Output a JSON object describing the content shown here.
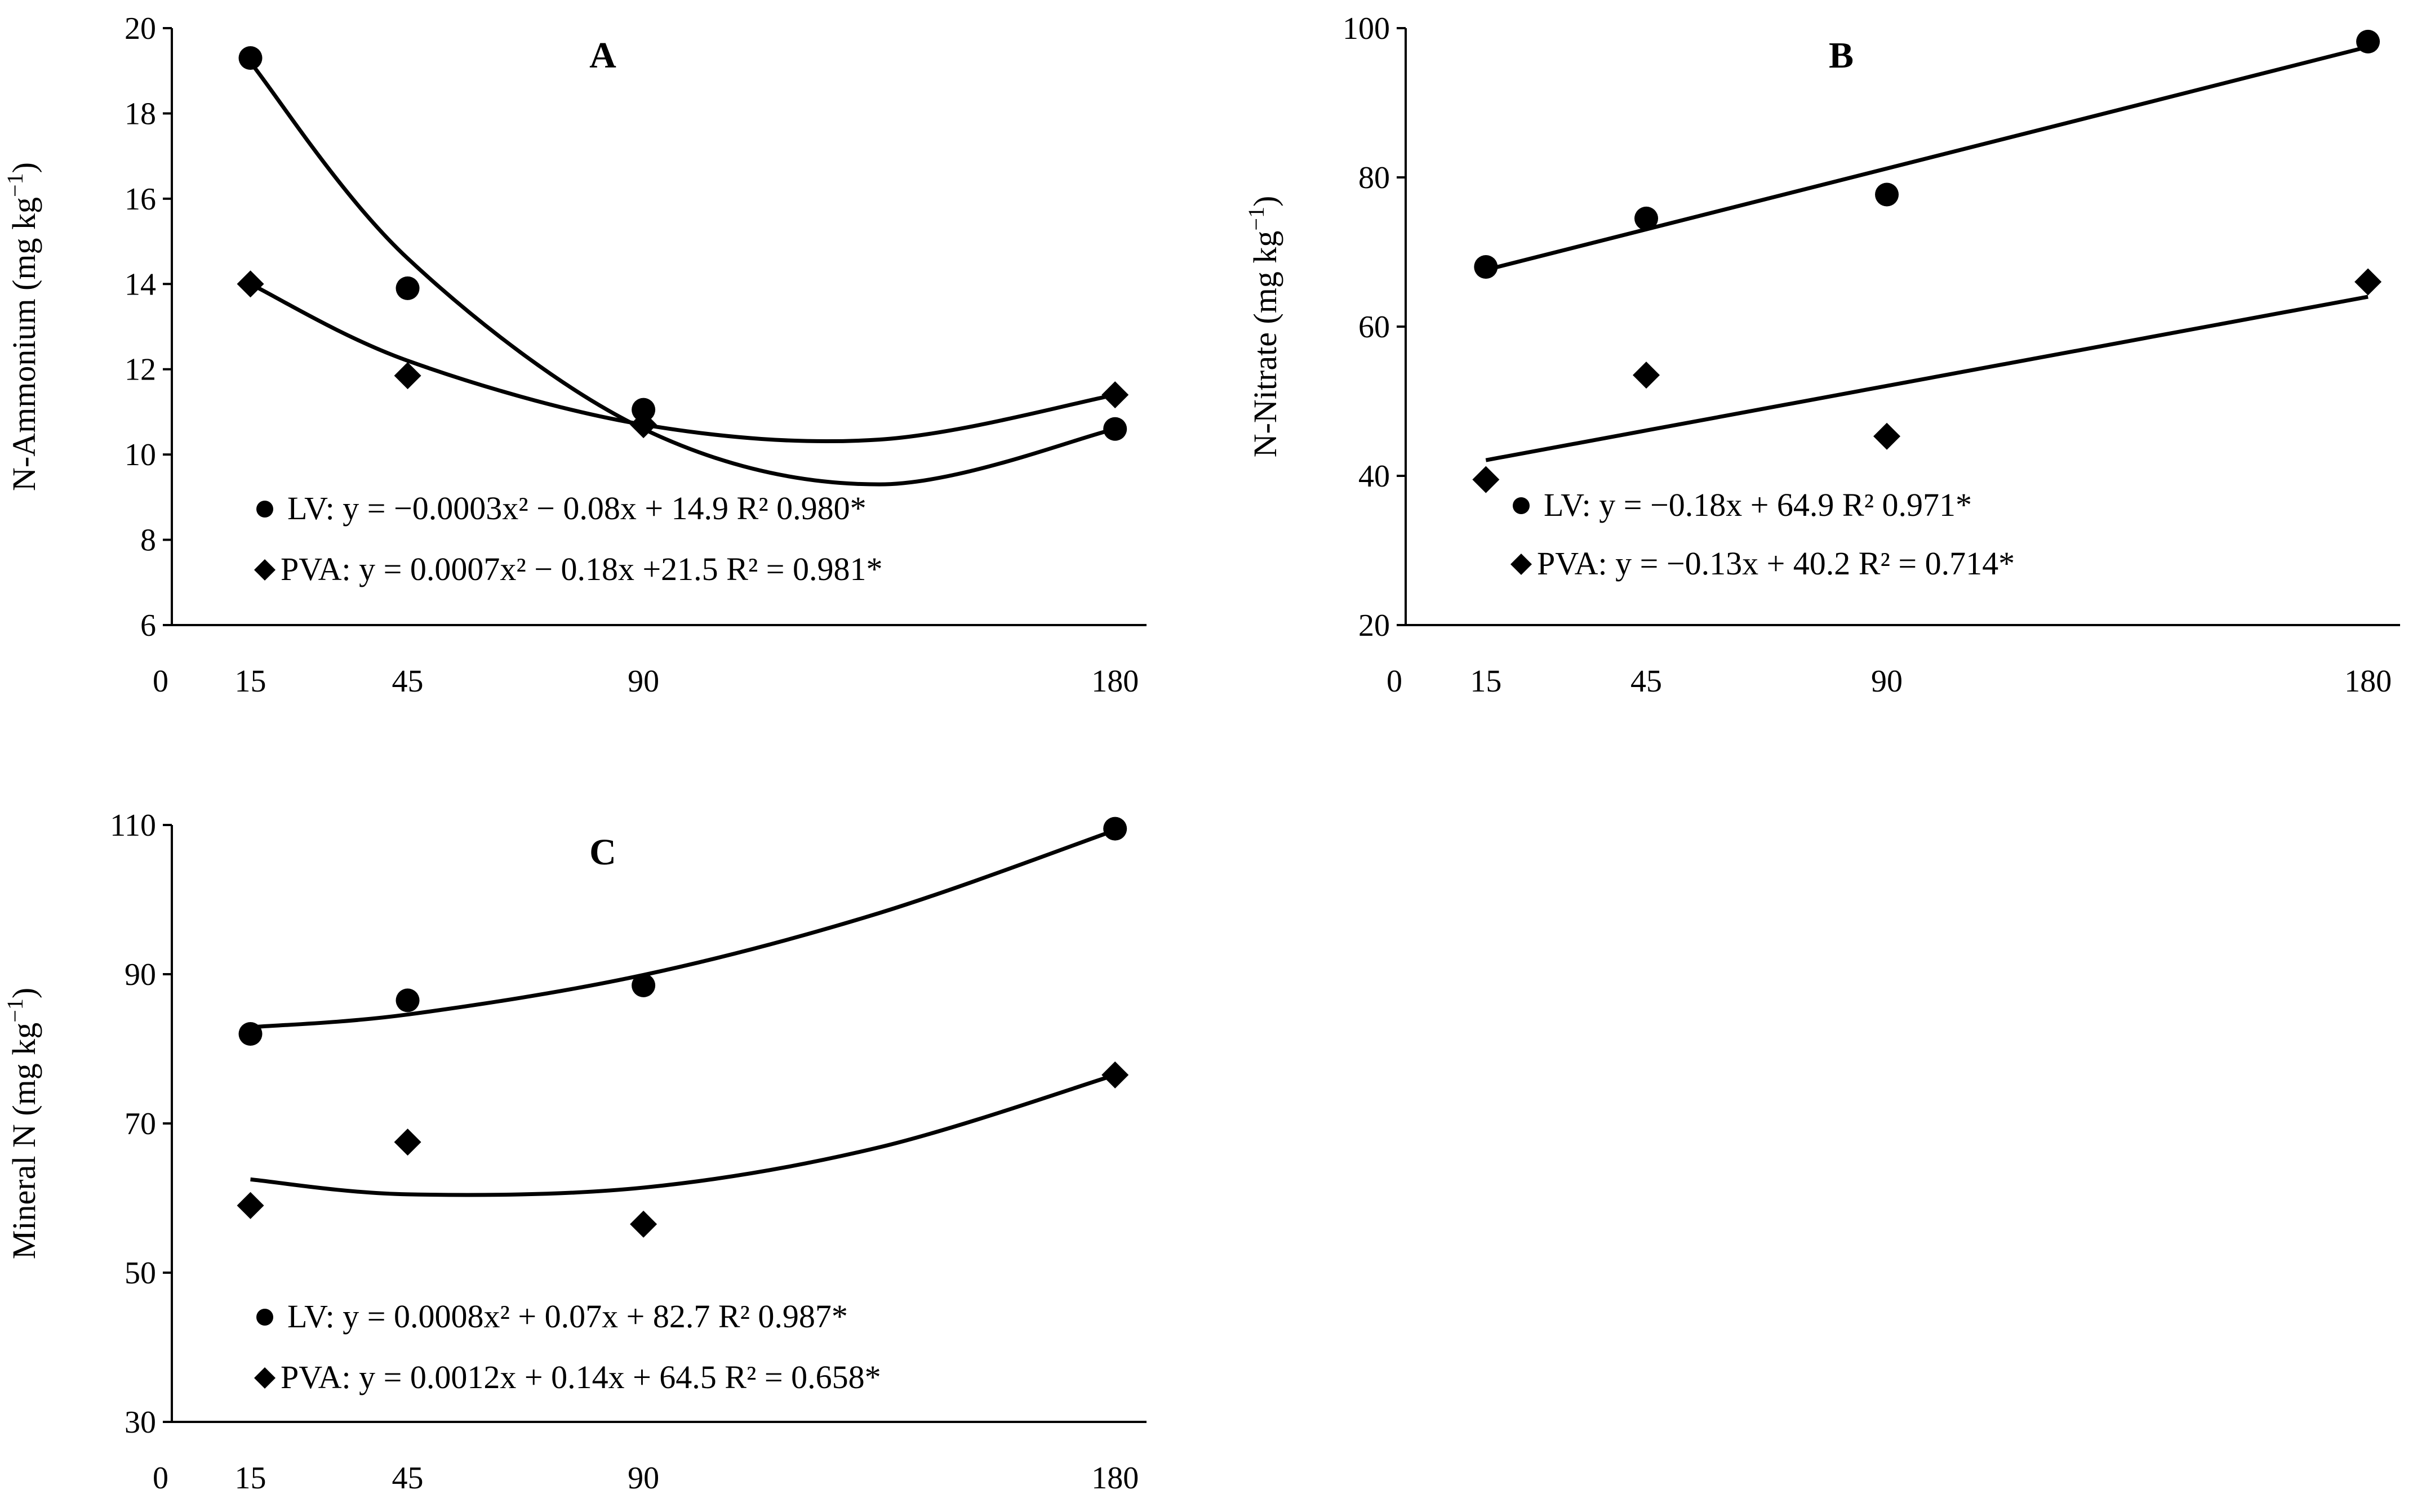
{
  "chart_data": [
    {
      "type": "scatter",
      "panel_label": "A",
      "ylabel": "N-Ammonium (mg kg",
      "ylabel_sup": "−1",
      "ylabel_close": ")",
      "ylim": [
        6,
        20
      ],
      "yticks": [
        6,
        8,
        10,
        12,
        14,
        16,
        18,
        20
      ],
      "xlim": [
        0,
        180
      ],
      "xticks": [
        0,
        15,
        45,
        90,
        180
      ],
      "series": [
        {
          "name": "LV",
          "marker": "circle",
          "x": [
            15,
            45,
            90,
            180
          ],
          "y": [
            19.3,
            13.9,
            11.05,
            10.6
          ],
          "fit": {
            "kind": "quadratic",
            "points": [
              [
                15,
                19.2
              ],
              [
                45,
                14.6
              ],
              [
                90,
                10.6
              ],
              [
                135,
                9.3
              ],
              [
                180,
                10.6
              ]
            ]
          },
          "legend": "LV: y = −0.0003x² − 0.08x + 14.9 R² 0.980*"
        },
        {
          "name": "PVA",
          "marker": "diamond",
          "x": [
            15,
            45,
            90,
            180
          ],
          "y": [
            14.0,
            11.85,
            10.7,
            11.4
          ],
          "fit": {
            "kind": "quadratic",
            "points": [
              [
                15,
                14.0
              ],
              [
                45,
                12.2
              ],
              [
                90,
                10.7
              ],
              [
                135,
                10.35
              ],
              [
                180,
                11.4
              ]
            ]
          },
          "legend": "PVA: y = 0.0007x² − 0.18x +21.5 R² = 0.981*"
        }
      ]
    },
    {
      "type": "scatter",
      "panel_label": "B",
      "ylabel": "N-Nitrate (mg kg",
      "ylabel_sup": "−1",
      "ylabel_close": ")",
      "ylim": [
        20,
        100
      ],
      "yticks": [
        20,
        40,
        60,
        80,
        100
      ],
      "xlim": [
        0,
        180
      ],
      "xticks": [
        0,
        15,
        45,
        90,
        180
      ],
      "series": [
        {
          "name": "LV",
          "marker": "circle",
          "x": [
            15,
            45,
            90,
            180
          ],
          "y": [
            68,
            74.5,
            77.7,
            98.2
          ],
          "fit": {
            "kind": "linear",
            "points": [
              [
                15,
                67.6
              ],
              [
                180,
                97.5
              ]
            ]
          },
          "legend": "LV: y = −0.18x + 64.9 R² 0.971*"
        },
        {
          "name": "PVA",
          "marker": "diamond",
          "x": [
            15,
            45,
            90,
            180
          ],
          "y": [
            39.5,
            53.5,
            45.3,
            66.0
          ],
          "fit": {
            "kind": "linear",
            "points": [
              [
                15,
                42.1
              ],
              [
                180,
                64.0
              ]
            ]
          },
          "legend": "PVA: y = −0.13x + 40.2 R² = 0.714*"
        }
      ]
    },
    {
      "type": "scatter",
      "panel_label": "C",
      "ylabel": "Mineral N (mg kg",
      "ylabel_sup": "−1",
      "ylabel_close": ")",
      "ylim": [
        30,
        110
      ],
      "yticks": [
        30,
        50,
        70,
        90,
        110
      ],
      "xlim": [
        0,
        180
      ],
      "xticks": [
        0,
        15,
        45,
        90,
        180
      ],
      "series": [
        {
          "name": "LV",
          "marker": "circle",
          "x": [
            15,
            45,
            90,
            180
          ],
          "y": [
            82.0,
            86.5,
            88.5,
            109.5
          ],
          "fit": {
            "kind": "quadratic",
            "points": [
              [
                15,
                82.9
              ],
              [
                45,
                84.6
              ],
              [
                90,
                89.9
              ],
              [
                135,
                98.2
              ],
              [
                180,
                109.3
              ]
            ]
          },
          "legend": "LV: y = 0.0008x² + 0.07x + 82.7 R² 0.987*"
        },
        {
          "name": "PVA",
          "marker": "diamond",
          "x": [
            15,
            45,
            90,
            180
          ],
          "y": [
            59.0,
            67.5,
            56.5,
            76.5
          ],
          "fit": {
            "kind": "quadratic",
            "points": [
              [
                15,
                62.5
              ],
              [
                45,
                60.5
              ],
              [
                90,
                61.4
              ],
              [
                135,
                66.8
              ],
              [
                180,
                76.5
              ]
            ]
          },
          "legend": "PVA: y = 0.0012x + 0.14x + 64.5 R² = 0.658*"
        }
      ]
    }
  ]
}
